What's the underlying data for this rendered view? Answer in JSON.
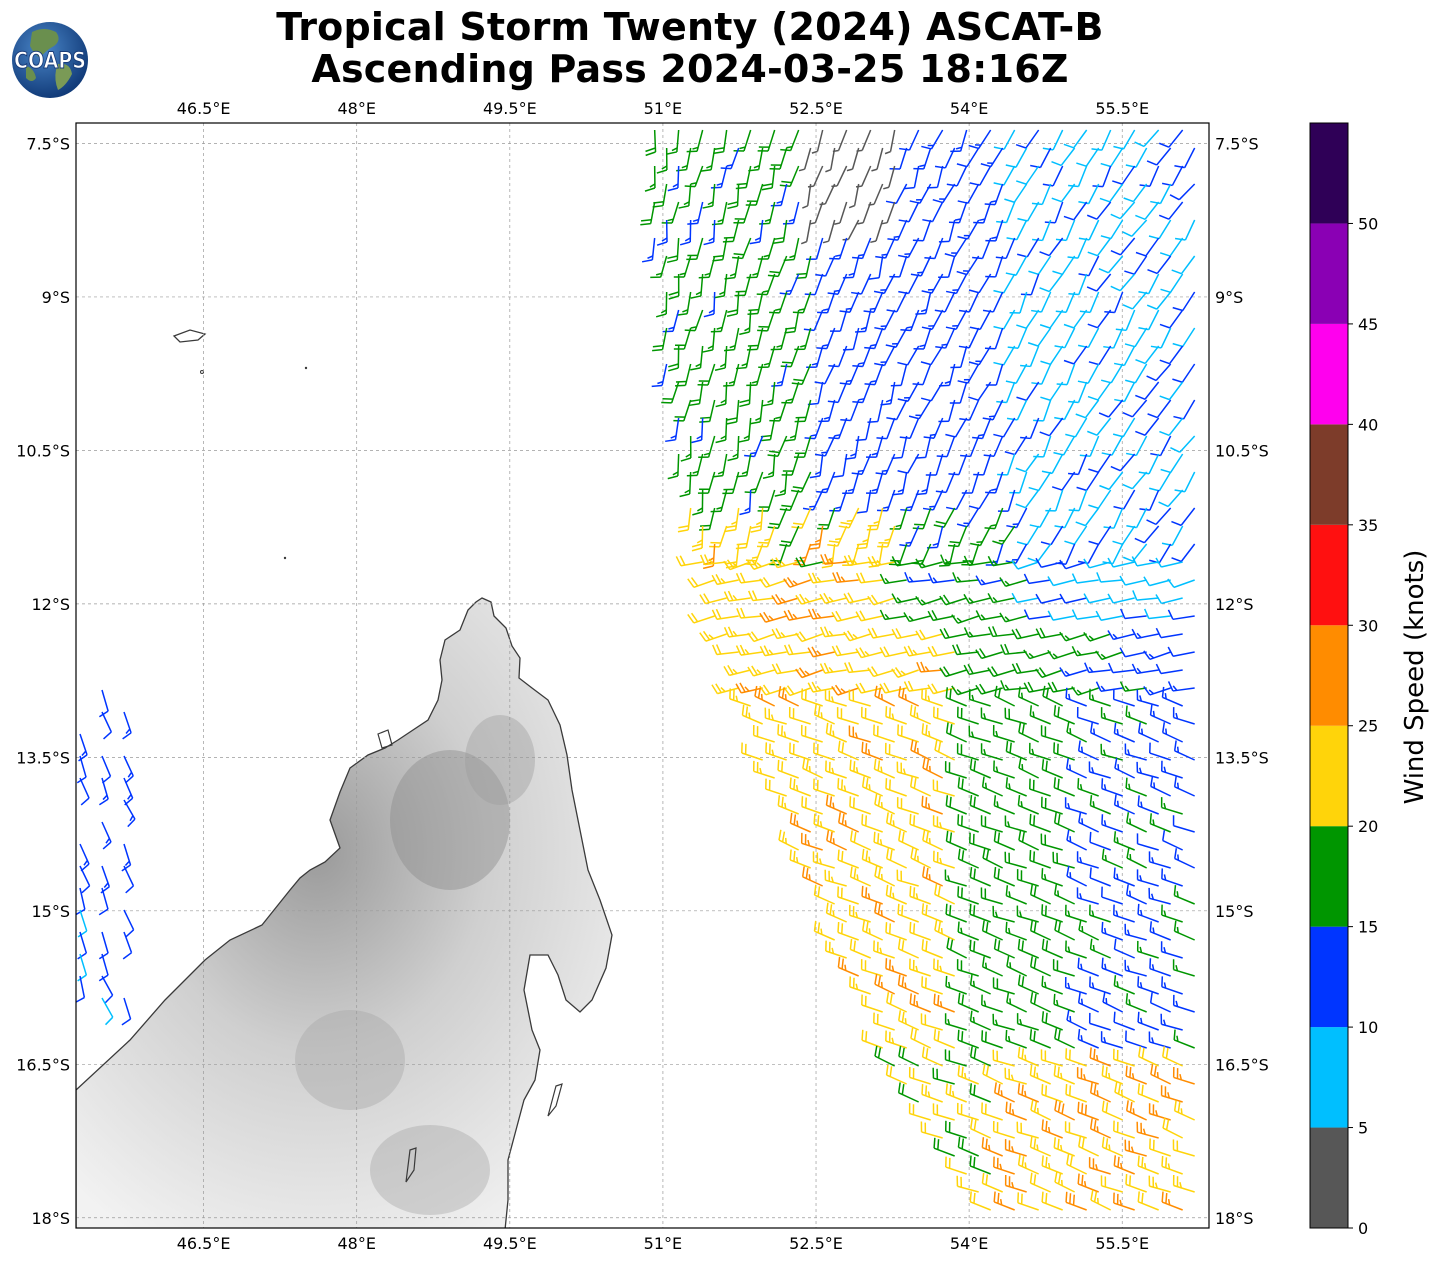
{
  "title": {
    "line1": "Tropical Storm Twenty (2024) ASCAT-B",
    "line2": "Ascending Pass 2024-03-25 18:16Z"
  },
  "logo": {
    "text": "COAPS"
  },
  "map": {
    "lon_ticks": [
      "46.5°E",
      "48°E",
      "49.5°E",
      "51°E",
      "52.5°E",
      "54°E",
      "55.5°E"
    ],
    "lat_ticks": [
      "7.5°S",
      "9°S",
      "10.5°S",
      "12°S",
      "13.5°S",
      "15°S",
      "16.5°S",
      "18°S"
    ],
    "extent": {
      "lon_min": 45.25,
      "lon_max": 56.35,
      "lat_max": -7.3,
      "lat_min": -18.1
    },
    "gridlines": true,
    "land": "Madagascar (grayscale elevation shading)"
  },
  "colorbar": {
    "label": "Wind Speed (knots)",
    "ticks": [
      "0",
      "5",
      "10",
      "15",
      "20",
      "25",
      "30",
      "35",
      "40",
      "45",
      "50"
    ],
    "range": [
      0,
      55
    ],
    "bins": [
      {
        "from": 0,
        "to": 5,
        "color": "#575757"
      },
      {
        "from": 5,
        "to": 10,
        "color": "#00bfff"
      },
      {
        "from": 10,
        "to": 15,
        "color": "#0035ff"
      },
      {
        "from": 15,
        "to": 20,
        "color": "#009600"
      },
      {
        "from": 20,
        "to": 25,
        "color": "#ffd40a"
      },
      {
        "from": 25,
        "to": 30,
        "color": "#ff8c00"
      },
      {
        "from": 30,
        "to": 35,
        "color": "#ff1010"
      },
      {
        "from": 35,
        "to": 40,
        "color": "#7d3c2a"
      },
      {
        "from": 40,
        "to": 45,
        "color": "#ff00ee"
      },
      {
        "from": 45,
        "to": 50,
        "color": "#8a00b4"
      },
      {
        "from": 50,
        "to": 55,
        "color": "#2f0057"
      }
    ]
  }
}
